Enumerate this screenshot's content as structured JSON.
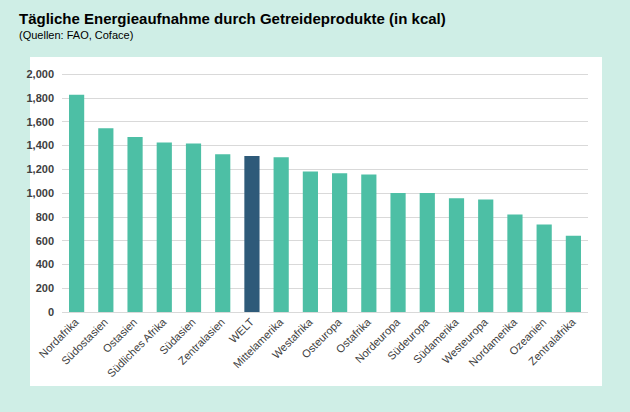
{
  "chart_data": {
    "type": "bar",
    "title": "Tägliche Energieaufnahme durch Getreideprodukte (in kcal)",
    "subtitle": "(Quellen: FAO, Coface)",
    "categories": [
      "Nordafrika",
      "Südostasien",
      "Ostasien",
      "Südliches Afrika",
      "Südasien",
      "Zentralasien",
      "WELT",
      "Mittelamerika",
      "Westafrika",
      "Osteuropa",
      "Ostafrika",
      "Nordeuropa",
      "Südeuropa",
      "Südamerika",
      "Westeuropa",
      "Nordamerika",
      "Ozeanien",
      "Zentralafrika"
    ],
    "values": [
      1825,
      1545,
      1470,
      1425,
      1415,
      1325,
      1310,
      1300,
      1180,
      1165,
      1155,
      1000,
      1000,
      955,
      945,
      820,
      735,
      640
    ],
    "colors": [
      "#4dbfa5",
      "#4dbfa5",
      "#4dbfa5",
      "#4dbfa5",
      "#4dbfa5",
      "#4dbfa5",
      "#2e5a79",
      "#4dbfa5",
      "#4dbfa5",
      "#4dbfa5",
      "#4dbfa5",
      "#4dbfa5",
      "#4dbfa5",
      "#4dbfa5",
      "#4dbfa5",
      "#4dbfa5",
      "#4dbfa5",
      "#4dbfa5"
    ],
    "ylim": [
      0,
      2000
    ],
    "yticks": [
      0,
      200,
      400,
      600,
      800,
      1000,
      1200,
      1400,
      1600,
      1800,
      2000
    ],
    "grid": true
  }
}
